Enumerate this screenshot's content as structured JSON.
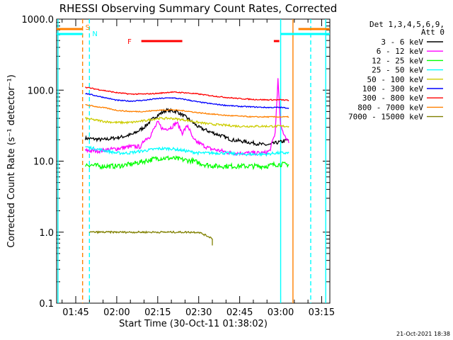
{
  "chart_data": {
    "type": "line",
    "title": "RHESSI Observing Summary Count Rates, Corrected",
    "xlabel": "Start Time (30-Oct-11 01:38:02)",
    "ylabel": "Corrected Count Rate (s⁻¹ detector⁻¹)",
    "y_scale": "log",
    "ylim": [
      0.1,
      1000.0
    ],
    "xlim_minutes_of_day": [
      98.0,
      198.0
    ],
    "y_ticks": [
      {
        "value": 0.1,
        "label": "0.1"
      },
      {
        "value": 1.0,
        "label": "1.0"
      },
      {
        "value": 10.0,
        "label": "10.0"
      },
      {
        "value": 100.0,
        "label": "100.0"
      },
      {
        "value": 1000.0,
        "label": "1000.0"
      }
    ],
    "x_ticks": [
      {
        "value": 105,
        "label": "01:45"
      },
      {
        "value": 120,
        "label": "02:00"
      },
      {
        "value": 135,
        "label": "02:15"
      },
      {
        "value": 150,
        "label": "02:30"
      },
      {
        "value": 165,
        "label": "02:45"
      },
      {
        "value": 180,
        "label": "03:00"
      },
      {
        "value": 195,
        "label": "03:15"
      }
    ],
    "legend": {
      "placement": "right",
      "header": [
        "Det 1,3,4,5,6,9,",
        "Att 0"
      ]
    },
    "series": [
      {
        "name": "3 - 6 keV",
        "color": "#000000",
        "points": [
          [
            108.5,
            21
          ],
          [
            115,
            20
          ],
          [
            122,
            22
          ],
          [
            126,
            24
          ],
          [
            130,
            30
          ],
          [
            134,
            42
          ],
          [
            138,
            52
          ],
          [
            142,
            50
          ],
          [
            146,
            40
          ],
          [
            150,
            30
          ],
          [
            154,
            26
          ],
          [
            158,
            23
          ],
          [
            162,
            20
          ],
          [
            166,
            19
          ],
          [
            170,
            18
          ],
          [
            174,
            17
          ],
          [
            176,
            17
          ],
          [
            178,
            18
          ],
          [
            181,
            19
          ],
          [
            183,
            20
          ]
        ]
      },
      {
        "name": "6 - 12 keV",
        "color": "#ff00ff",
        "points": [
          [
            108.5,
            14
          ],
          [
            114,
            14
          ],
          [
            120,
            15
          ],
          [
            125,
            16
          ],
          [
            129,
            16
          ],
          [
            130,
            20
          ],
          [
            132,
            22
          ],
          [
            135,
            35
          ],
          [
            137,
            28
          ],
          [
            140,
            30
          ],
          [
            142,
            35
          ],
          [
            144,
            25
          ],
          [
            146,
            32
          ],
          [
            148,
            20
          ],
          [
            150,
            18
          ],
          [
            154,
            15
          ],
          [
            158,
            14
          ],
          [
            162,
            13
          ],
          [
            166,
            13
          ],
          [
            170,
            13
          ],
          [
            174,
            13
          ],
          [
            176,
            14
          ],
          [
            178,
            25
          ],
          [
            179,
            140
          ],
          [
            180,
            30
          ],
          [
            183,
            18
          ]
        ]
      },
      {
        "name": "12 - 25 keV",
        "color": "#00ff00",
        "points": [
          [
            108.5,
            9
          ],
          [
            114,
            8.5
          ],
          [
            120,
            8.5
          ],
          [
            125,
            9
          ],
          [
            130,
            10
          ],
          [
            135,
            11
          ],
          [
            140,
            11
          ],
          [
            144,
            10.5
          ],
          [
            148,
            10
          ],
          [
            152,
            9
          ],
          [
            156,
            8.5
          ],
          [
            160,
            8.5
          ],
          [
            165,
            8.5
          ],
          [
            170,
            8.5
          ],
          [
            175,
            8.5
          ],
          [
            178,
            9
          ],
          [
            183,
            9
          ]
        ]
      },
      {
        "name": "25 - 50 keV",
        "color": "#00ffff",
        "points": [
          [
            108.5,
            16
          ],
          [
            112,
            15
          ],
          [
            116,
            14
          ],
          [
            120,
            13
          ],
          [
            124,
            13
          ],
          [
            130,
            14
          ],
          [
            135,
            15
          ],
          [
            140,
            15
          ],
          [
            145,
            14
          ],
          [
            150,
            13
          ],
          [
            155,
            13
          ],
          [
            160,
            13
          ],
          [
            165,
            12.5
          ],
          [
            170,
            12.5
          ],
          [
            175,
            12.5
          ],
          [
            178,
            13
          ],
          [
            183,
            13
          ]
        ]
      },
      {
        "name": "50 - 100 keV",
        "color": "#cccc00",
        "points": [
          [
            108.5,
            40
          ],
          [
            112,
            38
          ],
          [
            116,
            36
          ],
          [
            120,
            35
          ],
          [
            125,
            35
          ],
          [
            130,
            37
          ],
          [
            135,
            40
          ],
          [
            140,
            40
          ],
          [
            145,
            38
          ],
          [
            150,
            35
          ],
          [
            155,
            33
          ],
          [
            160,
            32
          ],
          [
            165,
            31
          ],
          [
            170,
            31
          ],
          [
            175,
            31
          ],
          [
            180,
            31
          ],
          [
            183,
            31
          ]
        ]
      },
      {
        "name": "100 - 300 keV",
        "color": "#0000ff",
        "points": [
          [
            108.5,
            90
          ],
          [
            112,
            84
          ],
          [
            116,
            78
          ],
          [
            120,
            72
          ],
          [
            125,
            70
          ],
          [
            130,
            72
          ],
          [
            135,
            76
          ],
          [
            140,
            78
          ],
          [
            145,
            74
          ],
          [
            150,
            68
          ],
          [
            155,
            64
          ],
          [
            160,
            61
          ],
          [
            165,
            59
          ],
          [
            170,
            58
          ],
          [
            175,
            57
          ],
          [
            180,
            57
          ],
          [
            183,
            56
          ]
        ]
      },
      {
        "name": "300 - 800 keV",
        "color": "#ff0000",
        "points": [
          [
            108.5,
            110
          ],
          [
            112,
            104
          ],
          [
            116,
            98
          ],
          [
            120,
            92
          ],
          [
            125,
            88
          ],
          [
            130,
            88
          ],
          [
            135,
            90
          ],
          [
            140,
            94
          ],
          [
            145,
            92
          ],
          [
            150,
            88
          ],
          [
            155,
            83
          ],
          [
            160,
            79
          ],
          [
            165,
            76
          ],
          [
            170,
            74
          ],
          [
            175,
            73
          ],
          [
            180,
            73
          ],
          [
            183,
            72
          ]
        ]
      },
      {
        "name": "800 - 7000 keV",
        "color": "#ff8000",
        "points": [
          [
            108.5,
            62
          ],
          [
            112,
            59
          ],
          [
            116,
            56
          ],
          [
            120,
            52
          ],
          [
            125,
            50
          ],
          [
            130,
            50
          ],
          [
            135,
            52
          ],
          [
            140,
            53
          ],
          [
            145,
            51
          ],
          [
            150,
            48
          ],
          [
            155,
            46
          ],
          [
            160,
            44
          ],
          [
            165,
            43
          ],
          [
            170,
            42
          ],
          [
            175,
            42
          ],
          [
            180,
            42
          ],
          [
            183,
            42
          ]
        ]
      },
      {
        "name": "7000 - 15000 keV",
        "color": "#808000",
        "points": [
          [
            110,
            1.0
          ],
          [
            134,
            1.0
          ],
          [
            150,
            1.0
          ],
          [
            155,
            0.82
          ],
          [
            155,
            0.65
          ]
        ]
      }
    ],
    "annotations": [
      {
        "text": "S",
        "x": 107.5,
        "color": "#ff8000"
      },
      {
        "text": "N",
        "x": 110,
        "color": "#00ffff"
      },
      {
        "text": "F",
        "x": 126,
        "color": "#ff0000"
      }
    ],
    "state_bars": [
      {
        "label": "S",
        "color": "#ff8000",
        "row": "upper",
        "intervals": [
          [
            98,
            107.5
          ],
          [
            186.5,
            198
          ]
        ]
      },
      {
        "label": "N",
        "color": "#00ffff",
        "row": "lower",
        "intervals": [
          [
            98,
            107.5
          ],
          [
            180,
            198
          ]
        ]
      },
      {
        "label": "F",
        "color": "#ff0000",
        "row": "flare",
        "intervals": [
          [
            129,
            144
          ],
          [
            177.5,
            179.5
          ]
        ]
      }
    ],
    "vlines": [
      {
        "x": 98.5,
        "color": "#00ffff",
        "style": "solid"
      },
      {
        "x": 107.5,
        "color": "#ff8000",
        "style": "dashed"
      },
      {
        "x": 110.0,
        "color": "#00ffff",
        "style": "dashed"
      },
      {
        "x": 180.0,
        "color": "#00ffff",
        "style": "solid"
      },
      {
        "x": 184.5,
        "color": "#ff8000",
        "style": "solid"
      },
      {
        "x": 191.0,
        "color": "#00ffff",
        "style": "dashed"
      },
      {
        "x": 196.5,
        "color": "#00ffff",
        "style": "solid"
      }
    ]
  },
  "footer": {
    "timestamp": "21-Oct-2021 18:38"
  }
}
